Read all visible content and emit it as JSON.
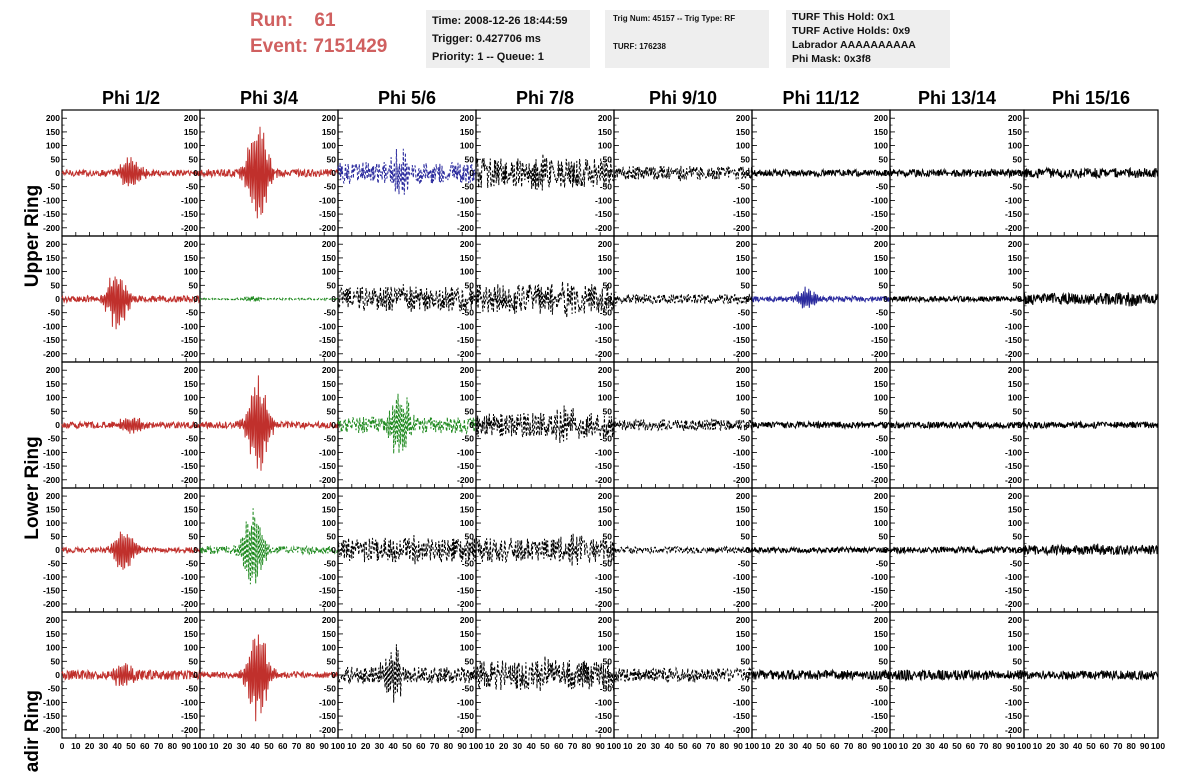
{
  "header": {
    "run_label": "Run:",
    "run_value": "61",
    "event_label": "Event:",
    "event_value": "7151429",
    "time_line": "Time: 2008-12-26 18:44:59",
    "trigger_line": "Trigger: 0.427706 ms",
    "priority_line": "Priority: 1 -- Queue: 1",
    "trig_num_line": "Trig Num: 45157 -- Trig Type: RF",
    "turf_line": "TURF: 176238",
    "turf_hold_line": "TURF This Hold: 0x1",
    "turf_active_line": "TURF Active Holds: 0x9",
    "labrador_line": "Labrador AAAAAAAAAA",
    "phi_mask_line": "Phi Mask: 0x3f8"
  },
  "colors": {
    "red": "#c0302c",
    "green": "#1f8a1f",
    "blue": "#2b2b9e",
    "black": "#000000",
    "header_text": "#d06060"
  },
  "chart_data": {
    "type": "line",
    "columns": [
      "Phi 1/2",
      "Phi 3/4",
      "Phi 5/6",
      "Phi 7/8",
      "Phi 9/10",
      "Phi 11/12",
      "Phi 13/14",
      "Phi 15/16"
    ],
    "rows": [
      "Upper Ring",
      "",
      "Lower Ring",
      "",
      "Nadir Ring"
    ],
    "ylim": [
      -230,
      230
    ],
    "yticks": [
      200,
      150,
      100,
      50,
      0,
      -50,
      -100,
      -150,
      -200
    ],
    "xlim": [
      0,
      100
    ],
    "xticks": [
      0,
      10,
      20,
      30,
      40,
      50,
      60,
      70,
      80,
      90,
      100
    ],
    "grid": false,
    "panels": [
      [
        {
          "color": "red",
          "dashed": false,
          "noise": 12,
          "pulse_amp": 70,
          "pulse_center": 50
        },
        {
          "color": "red",
          "dashed": false,
          "noise": 14,
          "pulse_amp": 210,
          "pulse_center": 42
        },
        {
          "color": "blue",
          "dashed": true,
          "noise": 40,
          "pulse_amp": 95,
          "pulse_center": 45
        },
        {
          "color": "black",
          "dashed": true,
          "noise": 55,
          "pulse_amp": 30,
          "pulse_center": 50
        },
        {
          "color": "black",
          "dashed": true,
          "noise": 25,
          "pulse_amp": 10,
          "pulse_center": 50
        },
        {
          "color": "black",
          "dashed": false,
          "noise": 12,
          "pulse_amp": 0,
          "pulse_center": 50
        },
        {
          "color": "black",
          "dashed": false,
          "noise": 14,
          "pulse_amp": 0,
          "pulse_center": 50
        },
        {
          "color": "black",
          "dashed": false,
          "noise": 18,
          "pulse_amp": 0,
          "pulse_center": 50
        }
      ],
      [
        {
          "color": "red",
          "dashed": false,
          "noise": 12,
          "pulse_amp": 130,
          "pulse_center": 40
        },
        {
          "color": "green",
          "dashed": true,
          "noise": 3,
          "pulse_amp": 12,
          "pulse_center": 38
        },
        {
          "color": "black",
          "dashed": true,
          "noise": 45,
          "pulse_amp": 20,
          "pulse_center": 50
        },
        {
          "color": "black",
          "dashed": true,
          "noise": 55,
          "pulse_amp": 30,
          "pulse_center": 60
        },
        {
          "color": "black",
          "dashed": true,
          "noise": 18,
          "pulse_amp": 0,
          "pulse_center": 50
        },
        {
          "color": "blue",
          "dashed": false,
          "noise": 10,
          "pulse_amp": 45,
          "pulse_center": 40
        },
        {
          "color": "black",
          "dashed": false,
          "noise": 10,
          "pulse_amp": 0,
          "pulse_center": 50
        },
        {
          "color": "black",
          "dashed": false,
          "noise": 22,
          "pulse_amp": 10,
          "pulse_center": 80
        }
      ],
      [
        {
          "color": "red",
          "dashed": false,
          "noise": 12,
          "pulse_amp": 40,
          "pulse_center": 50
        },
        {
          "color": "red",
          "dashed": false,
          "noise": 12,
          "pulse_amp": 200,
          "pulse_center": 42
        },
        {
          "color": "green",
          "dashed": true,
          "noise": 30,
          "pulse_amp": 120,
          "pulse_center": 45
        },
        {
          "color": "black",
          "dashed": true,
          "noise": 45,
          "pulse_amp": 50,
          "pulse_center": 65
        },
        {
          "color": "black",
          "dashed": true,
          "noise": 20,
          "pulse_amp": 0,
          "pulse_center": 50
        },
        {
          "color": "black",
          "dashed": false,
          "noise": 12,
          "pulse_amp": 0,
          "pulse_center": 50
        },
        {
          "color": "black",
          "dashed": false,
          "noise": 12,
          "pulse_amp": 0,
          "pulse_center": 50
        },
        {
          "color": "black",
          "dashed": false,
          "noise": 12,
          "pulse_amp": 0,
          "pulse_center": 50
        }
      ],
      [
        {
          "color": "red",
          "dashed": false,
          "noise": 10,
          "pulse_amp": 90,
          "pulse_center": 45
        },
        {
          "color": "green",
          "dashed": true,
          "noise": 15,
          "pulse_amp": 170,
          "pulse_center": 38
        },
        {
          "color": "black",
          "dashed": true,
          "noise": 45,
          "pulse_amp": 20,
          "pulse_center": 60
        },
        {
          "color": "black",
          "dashed": true,
          "noise": 45,
          "pulse_amp": 30,
          "pulse_center": 70
        },
        {
          "color": "black",
          "dashed": true,
          "noise": 12,
          "pulse_amp": 0,
          "pulse_center": 50
        },
        {
          "color": "black",
          "dashed": false,
          "noise": 10,
          "pulse_amp": 0,
          "pulse_center": 50
        },
        {
          "color": "black",
          "dashed": false,
          "noise": 12,
          "pulse_amp": 0,
          "pulse_center": 50
        },
        {
          "color": "black",
          "dashed": false,
          "noise": 18,
          "pulse_amp": 10,
          "pulse_center": 55
        }
      ],
      [
        {
          "color": "red",
          "dashed": false,
          "noise": 18,
          "pulse_amp": 50,
          "pulse_center": 45
        },
        {
          "color": "red",
          "dashed": false,
          "noise": 12,
          "pulse_amp": 200,
          "pulse_center": 42
        },
        {
          "color": "black",
          "dashed": true,
          "noise": 30,
          "pulse_amp": 100,
          "pulse_center": 40
        },
        {
          "color": "black",
          "dashed": true,
          "noise": 55,
          "pulse_amp": 30,
          "pulse_center": 45
        },
        {
          "color": "black",
          "dashed": true,
          "noise": 25,
          "pulse_amp": 0,
          "pulse_center": 50
        },
        {
          "color": "black",
          "dashed": false,
          "noise": 18,
          "pulse_amp": 0,
          "pulse_center": 50
        },
        {
          "color": "black",
          "dashed": false,
          "noise": 18,
          "pulse_amp": 0,
          "pulse_center": 50
        },
        {
          "color": "black",
          "dashed": false,
          "noise": 16,
          "pulse_amp": 0,
          "pulse_center": 50
        }
      ]
    ]
  }
}
